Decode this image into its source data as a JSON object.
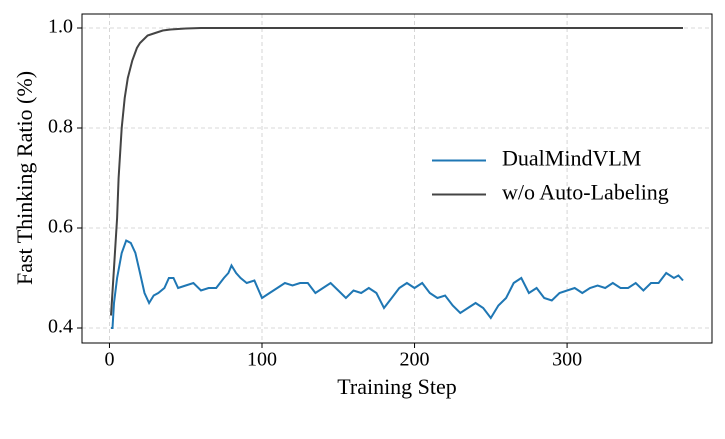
{
  "chart_data": {
    "type": "line",
    "xlabel": "Training Step",
    "ylabel": "Fast Thinking Ratio (%)",
    "xlim": [
      -18,
      395
    ],
    "ylim": [
      0.37,
      1.028
    ],
    "xticks": [
      0,
      100,
      200,
      300
    ],
    "yticks": [
      0.4,
      0.6,
      0.8,
      {
        "value": 1,
        "label": "1.0"
      }
    ],
    "grid": true,
    "legend": "center right",
    "series": [
      {
        "name": "DualMindVLM",
        "color": "#1f77b4",
        "x": [
          1,
          2,
          3,
          5,
          8,
          11,
          14,
          17,
          20,
          23,
          26,
          29,
          32,
          36,
          39,
          42,
          45,
          50,
          55,
          60,
          65,
          70,
          75,
          78,
          80,
          83,
          86,
          90,
          95,
          100,
          105,
          110,
          115,
          120,
          125,
          130,
          135,
          140,
          145,
          150,
          155,
          160,
          165,
          170,
          175,
          180,
          185,
          190,
          195,
          200,
          205,
          210,
          215,
          220,
          225,
          230,
          235,
          240,
          245,
          250,
          255,
          260,
          265,
          270,
          275,
          280,
          285,
          290,
          295,
          300,
          305,
          310,
          315,
          320,
          325,
          330,
          335,
          340,
          345,
          350,
          355,
          360,
          365,
          370,
          373,
          376
        ],
        "values": [
          0.4,
          0.4,
          0.45,
          0.5,
          0.55,
          0.575,
          0.57,
          0.55,
          0.51,
          0.47,
          0.45,
          0.465,
          0.47,
          0.48,
          0.5,
          0.5,
          0.48,
          0.485,
          0.49,
          0.475,
          0.48,
          0.48,
          0.5,
          0.51,
          0.525,
          0.51,
          0.5,
          0.49,
          0.495,
          0.46,
          0.47,
          0.48,
          0.49,
          0.485,
          0.49,
          0.49,
          0.47,
          0.48,
          0.49,
          0.475,
          0.46,
          0.475,
          0.47,
          0.48,
          0.47,
          0.44,
          0.46,
          0.48,
          0.49,
          0.48,
          0.49,
          0.47,
          0.46,
          0.465,
          0.445,
          0.43,
          0.44,
          0.45,
          0.44,
          0.42,
          0.445,
          0.46,
          0.49,
          0.5,
          0.47,
          0.48,
          0.46,
          0.455,
          0.47,
          0.475,
          0.48,
          0.47,
          0.48,
          0.485,
          0.48,
          0.49,
          0.48,
          0.48,
          0.49,
          0.475,
          0.49,
          0.49,
          0.51,
          0.5,
          0.505,
          0.495
        ]
      },
      {
        "name": "w/o Auto-Labeling",
        "color": "#444444",
        "x": [
          1,
          3,
          5,
          6,
          8,
          10,
          12,
          15,
          18,
          20,
          25,
          30,
          35,
          40,
          50,
          60,
          80,
          100,
          200,
          300,
          376
        ],
        "values": [
          0.425,
          0.52,
          0.62,
          0.7,
          0.8,
          0.86,
          0.9,
          0.935,
          0.96,
          0.97,
          0.985,
          0.99,
          0.995,
          0.997,
          0.999,
          1.0,
          1.0,
          1.0,
          1.0,
          1.0,
          1.0
        ]
      }
    ]
  }
}
